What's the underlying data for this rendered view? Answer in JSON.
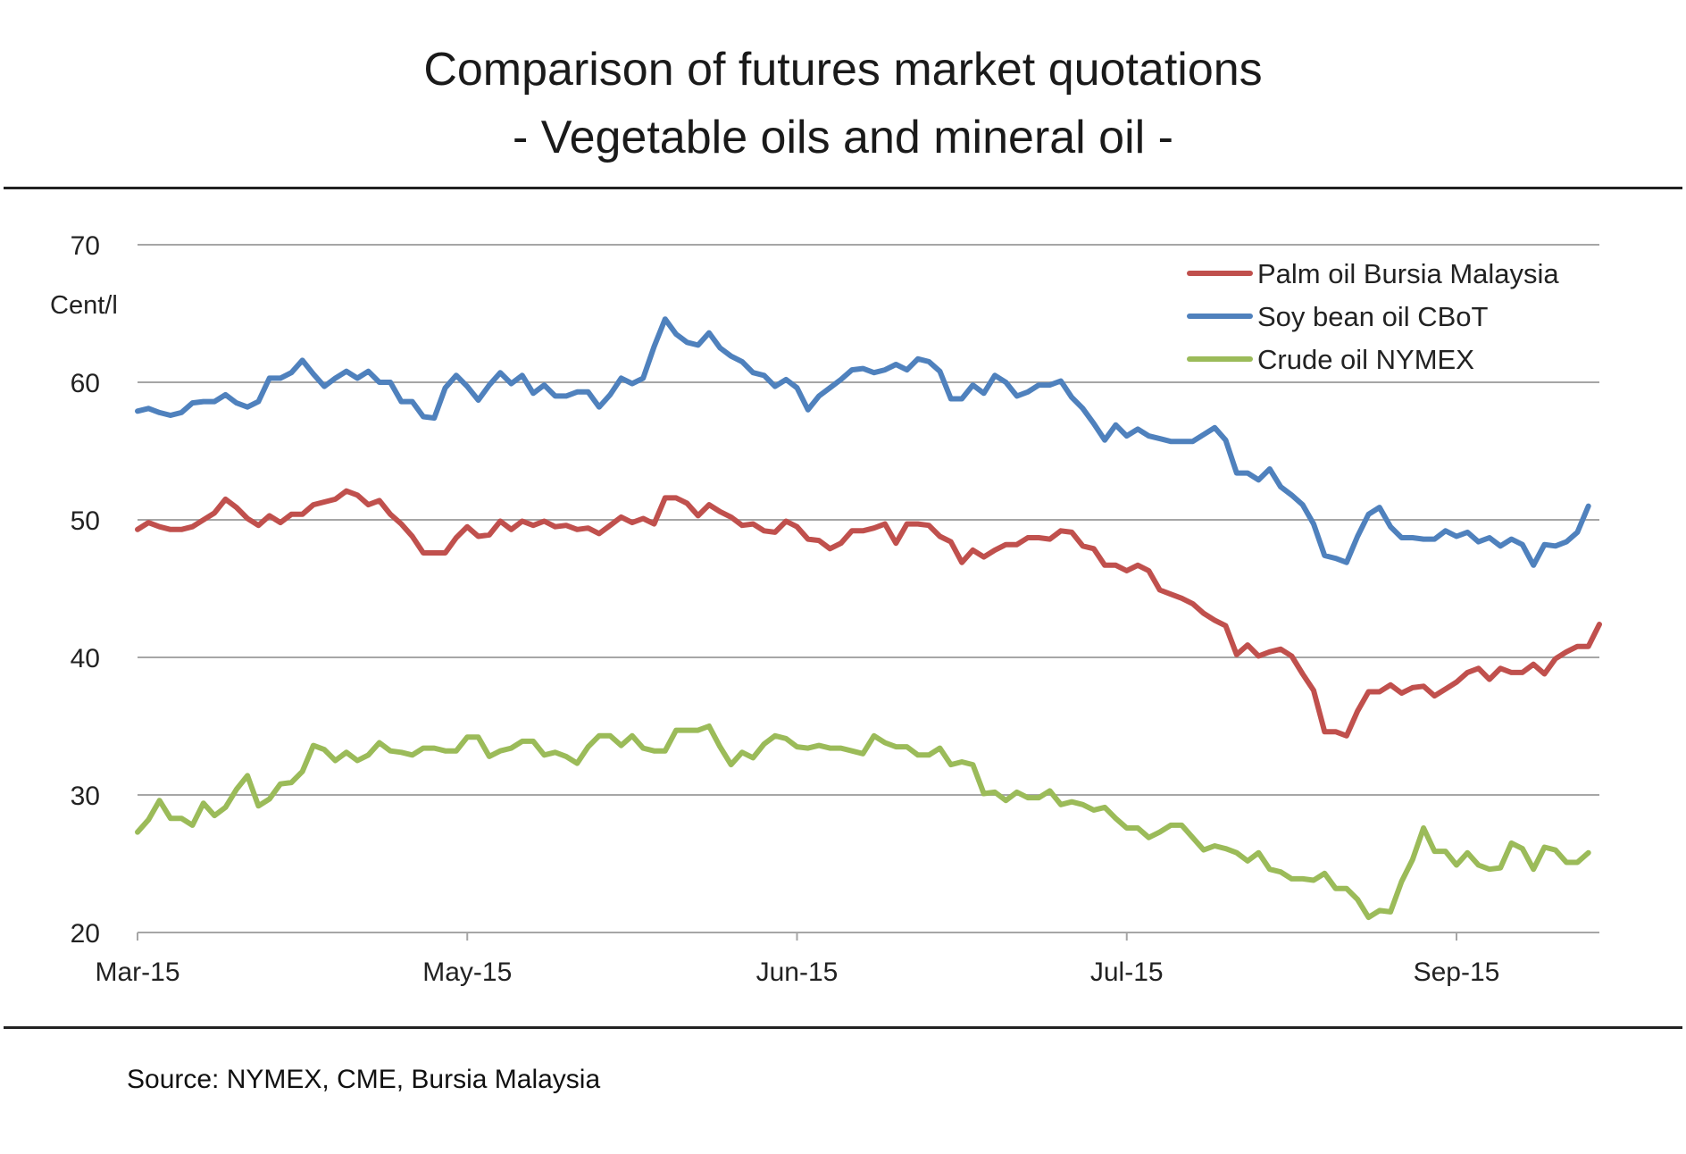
{
  "title_line1": "Comparison of futures market quotations",
  "title_line2": "- Vegetable oils and mineral oil -",
  "source": "Source: NYMEX, CME, Bursia Malaysia",
  "chart_data": {
    "type": "line",
    "ylabel": "Cent/l",
    "ylim": [
      20,
      70
    ],
    "yticks": [
      20,
      30,
      40,
      50,
      60,
      70
    ],
    "xlim": [
      0,
      133
    ],
    "xtick_labels": [
      "Mar-15",
      "May-15",
      "Jun-15",
      "Jul-15",
      "Sep-15"
    ],
    "xtick_positions": [
      0,
      30,
      60,
      90,
      120
    ],
    "grid": true,
    "legend": "top-right",
    "series": [
      {
        "name": "Palm oil Bursia  Malaysia",
        "color": "#c0504d",
        "values": [
          49.3,
          49.8,
          49.5,
          49.3,
          49.3,
          49.5,
          50.0,
          50.5,
          51.5,
          50.9,
          50.1,
          49.6,
          50.3,
          49.8,
          50.4,
          50.4,
          51.1,
          51.3,
          51.5,
          52.1,
          51.8,
          51.1,
          51.4,
          50.4,
          49.7,
          48.8,
          47.6,
          47.6,
          47.6,
          48.7,
          49.5,
          48.8,
          48.9,
          49.9,
          49.3,
          49.9,
          49.6,
          49.9,
          49.5,
          49.6,
          49.3,
          49.4,
          49.0,
          49.6,
          50.2,
          49.8,
          50.1,
          49.7,
          51.6,
          51.6,
          51.2,
          50.3,
          51.1,
          50.6,
          50.2,
          49.6,
          49.7,
          49.2,
          49.1,
          49.9,
          49.5,
          48.6,
          48.5,
          47.9,
          48.3,
          49.2,
          49.2,
          49.4,
          49.7,
          48.3,
          49.7,
          49.7,
          49.6,
          48.8,
          48.4,
          46.9,
          47.8,
          47.3,
          47.8,
          48.2,
          48.2,
          48.7,
          48.7,
          48.6,
          49.2,
          49.1,
          48.1,
          47.9,
          46.7,
          46.7,
          46.3,
          46.7,
          46.3,
          44.9,
          44.6,
          44.3,
          43.9,
          43.2,
          42.7,
          42.3,
          40.2,
          40.9,
          40.1,
          40.4,
          40.6,
          40.1,
          38.8,
          37.6,
          34.6,
          34.6,
          34.3,
          36.1,
          37.5,
          37.5,
          38.0,
          37.4,
          37.8,
          37.9,
          37.2,
          37.7,
          38.2,
          38.9,
          39.2,
          38.4,
          39.2,
          38.9,
          38.9,
          39.5,
          38.8,
          39.9,
          40.4,
          40.8,
          40.8,
          42.4
        ]
      },
      {
        "name": "Soy bean oil CBoT",
        "color": "#4f81bd",
        "values": [
          57.9,
          58.1,
          57.8,
          57.6,
          57.8,
          58.5,
          58.6,
          58.6,
          59.1,
          58.5,
          58.2,
          58.6,
          60.3,
          60.3,
          60.7,
          61.6,
          60.6,
          59.7,
          60.3,
          60.8,
          60.3,
          60.8,
          60.0,
          60.0,
          58.6,
          58.6,
          57.5,
          57.4,
          59.6,
          60.5,
          59.7,
          58.7,
          59.8,
          60.7,
          59.9,
          60.5,
          59.2,
          59.8,
          59.0,
          59.0,
          59.3,
          59.3,
          58.2,
          59.1,
          60.3,
          59.9,
          60.3,
          62.6,
          64.6,
          63.5,
          62.9,
          62.7,
          63.6,
          62.5,
          61.9,
          61.5,
          60.7,
          60.5,
          59.7,
          60.2,
          59.6,
          58.0,
          59.0,
          59.6,
          60.2,
          60.9,
          61.0,
          60.7,
          60.9,
          61.3,
          60.9,
          61.7,
          61.5,
          60.8,
          58.8,
          58.8,
          59.8,
          59.2,
          60.5,
          60.0,
          59.0,
          59.3,
          59.8,
          59.8,
          60.1,
          58.9,
          58.1,
          57.0,
          55.8,
          56.9,
          56.1,
          56.6,
          56.1,
          55.9,
          55.7,
          55.7,
          55.7,
          56.2,
          56.7,
          55.8,
          53.4,
          53.4,
          52.9,
          53.7,
          52.4,
          51.8,
          51.1,
          49.7,
          47.4,
          47.2,
          46.9,
          48.8,
          50.4,
          50.9,
          49.5,
          48.7,
          48.7,
          48.6,
          48.6,
          49.2,
          48.8,
          49.1,
          48.4,
          48.7,
          48.1,
          48.6,
          48.2,
          46.7,
          48.2,
          48.1,
          48.4,
          49.1,
          51.0
        ]
      },
      {
        "name": "Crude oil NYMEX",
        "color": "#9bbb59",
        "values": [
          27.3,
          28.2,
          29.6,
          28.3,
          28.3,
          27.8,
          29.4,
          28.5,
          29.1,
          30.4,
          31.4,
          29.2,
          29.7,
          30.8,
          30.9,
          31.7,
          33.6,
          33.3,
          32.5,
          33.1,
          32.5,
          32.9,
          33.8,
          33.2,
          33.1,
          32.9,
          33.4,
          33.4,
          33.2,
          33.2,
          34.2,
          34.2,
          32.8,
          33.2,
          33.4,
          33.9,
          33.9,
          32.9,
          33.1,
          32.8,
          32.3,
          33.5,
          34.3,
          34.3,
          33.6,
          34.3,
          33.4,
          33.2,
          33.2,
          34.7,
          34.7,
          34.7,
          35.0,
          33.5,
          32.2,
          33.1,
          32.7,
          33.7,
          34.3,
          34.1,
          33.5,
          33.4,
          33.6,
          33.4,
          33.4,
          33.2,
          33.0,
          34.3,
          33.8,
          33.5,
          33.5,
          32.9,
          32.9,
          33.4,
          32.2,
          32.4,
          32.2,
          30.1,
          30.2,
          29.6,
          30.2,
          29.8,
          29.8,
          30.3,
          29.3,
          29.5,
          29.3,
          28.9,
          29.1,
          28.3,
          27.6,
          27.6,
          26.9,
          27.3,
          27.8,
          27.8,
          26.9,
          26.0,
          26.3,
          26.1,
          25.8,
          25.2,
          25.8,
          24.6,
          24.4,
          23.9,
          23.9,
          23.8,
          24.3,
          23.2,
          23.2,
          22.4,
          21.1,
          21.6,
          21.5,
          23.7,
          25.3,
          27.6,
          25.9,
          25.9,
          24.9,
          25.8,
          24.9,
          24.6,
          24.7,
          26.5,
          26.1,
          24.6,
          26.2,
          26.0,
          25.1,
          25.1,
          25.8
        ]
      }
    ]
  }
}
